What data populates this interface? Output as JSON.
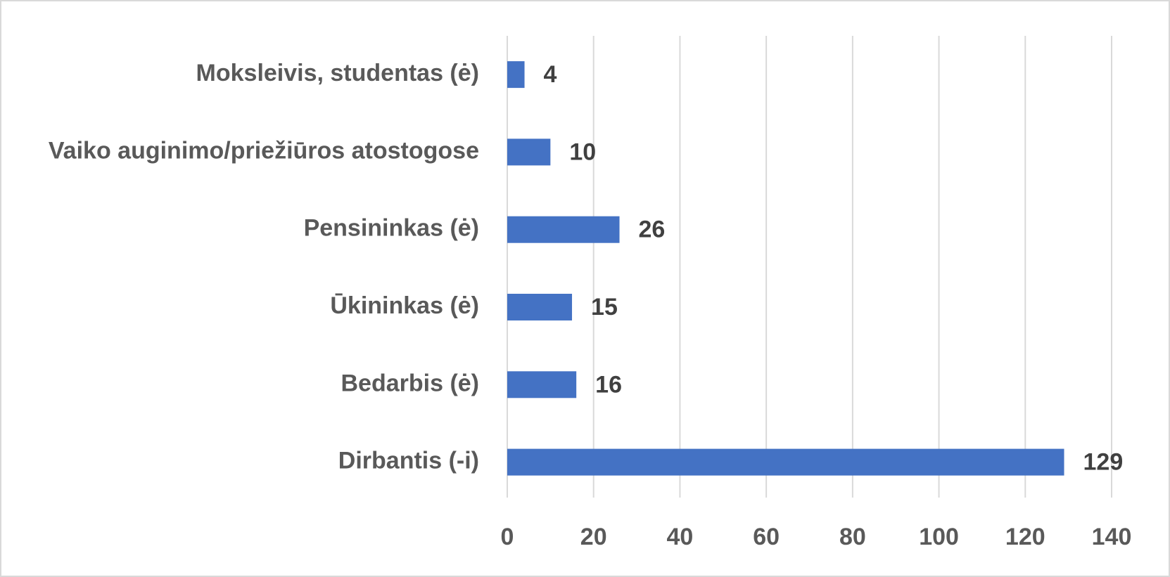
{
  "chart_data": {
    "type": "barh",
    "categories": [
      "Moksleivis, studentas (ė)",
      "Vaiko auginimo/priežiūros atostogose",
      "Pensininkas (ė)",
      "Ūkininkas (ė)",
      "Bedarbis (ė)",
      "Dirbantis (-i)"
    ],
    "values": [
      4,
      10,
      26,
      15,
      16,
      129
    ],
    "color": "#4472c4",
    "xlim": [
      0,
      140
    ],
    "xticks": [
      0,
      20,
      40,
      60,
      80,
      100,
      120,
      140
    ],
    "grid": true
  }
}
